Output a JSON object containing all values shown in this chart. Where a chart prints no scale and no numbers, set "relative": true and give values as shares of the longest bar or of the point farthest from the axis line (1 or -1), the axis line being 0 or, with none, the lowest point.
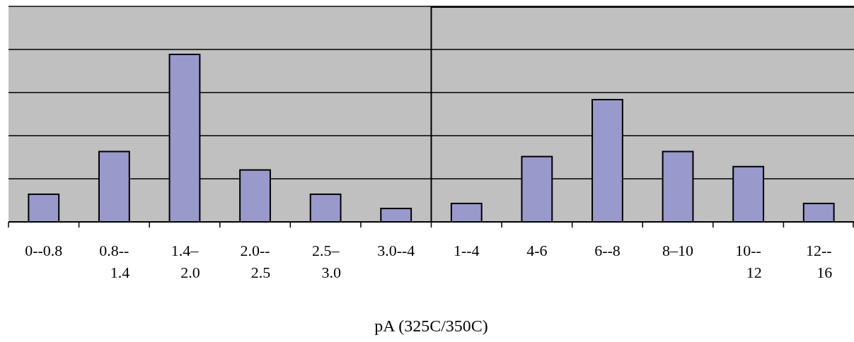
{
  "chart_data": {
    "type": "bar",
    "xlabel": "pA (325C/350C)",
    "categories": [
      "0--0.8",
      "0.8--\n1.4",
      "1.4–\n2.0",
      "2.0--\n2.5",
      "2.5–\n3.0",
      "3.0--4",
      "1--4",
      "4-6",
      "6--8",
      "8–10",
      "10--\n12",
      "12--\n16"
    ],
    "values": [
      0.165,
      0.42,
      1,
      0.31,
      0.165,
      0.08,
      0.11,
      0.39,
      0.73,
      0.42,
      0.33,
      0.11
    ],
    "color": "#9999cc",
    "relative": true,
    "grid": true
  }
}
